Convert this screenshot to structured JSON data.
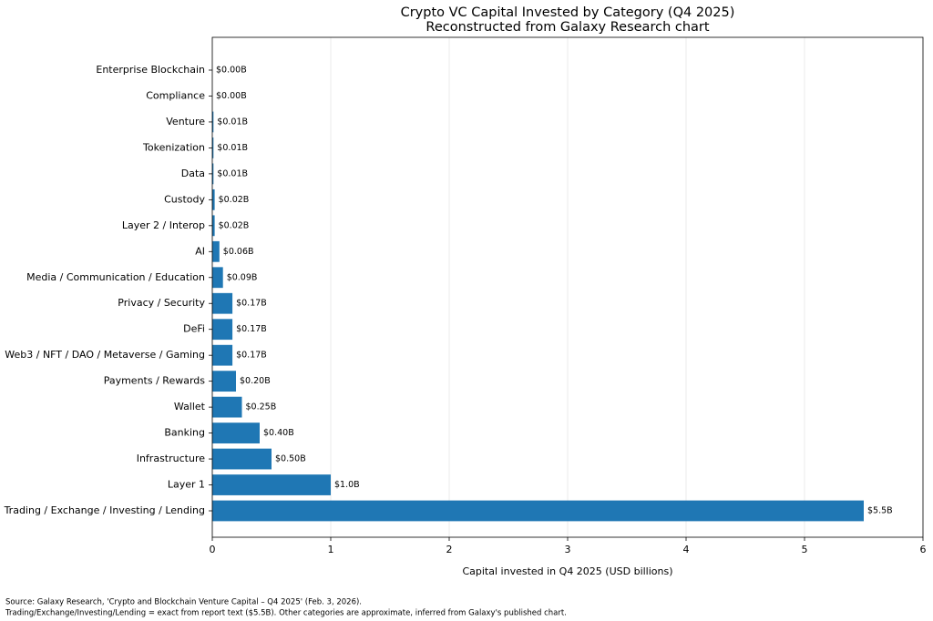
{
  "chart_data": {
    "type": "hbar",
    "title": "Crypto VC Capital Invested by Category (Q4 2025)",
    "subtitle": "Reconstructed from Galaxy Research chart",
    "x_label": "Capital invested in Q4 2025 (USD billions)",
    "categories": [
      "Enterprise Blockchain",
      "Compliance",
      "Venture",
      "Tokenization",
      "Data",
      "Custody",
      "Layer 2 / Interop",
      "AI",
      "Media / Communication / Education",
      "Privacy / Security",
      "DeFi",
      "Web3 / NFT / DAO / Metaverse / Gaming",
      "Payments / Rewards",
      "Wallet",
      "Banking",
      "Infrastructure",
      "Layer 1",
      "Trading / Exchange / Investing / Lending"
    ],
    "values": [
      0,
      0,
      0.01,
      0.01,
      0.01,
      0.02,
      0.02,
      0.06,
      0.09,
      0.17,
      0.17,
      0.17,
      0.2,
      0.25,
      0.4,
      0.5,
      1.0,
      5.5
    ],
    "value_labels": [
      "$0.00B",
      "$0.00B",
      "$0.01B",
      "$0.01B",
      "$0.01B",
      "$0.02B",
      "$0.02B",
      "$0.06B",
      "$0.09B",
      "$0.17B",
      "$0.17B",
      "$0.17B",
      "$0.20B",
      "$0.25B",
      "$0.40B",
      "$0.50B",
      "$1.0B",
      "$5.5B"
    ],
    "color": "#1f77b4",
    "xlim": [
      0,
      6
    ],
    "xticks": [
      0,
      1,
      2,
      3,
      4,
      5,
      6
    ],
    "grid": true,
    "notes": [
      "Source: Galaxy Research, 'Crypto and Blockchain Venture Capital – Q4 2025' (Feb. 3, 2026).",
      "Trading/Exchange/Investing/Lending = exact from report text ($5.5B). Other categories are approximate, inferred from Galaxy's published chart."
    ]
  }
}
